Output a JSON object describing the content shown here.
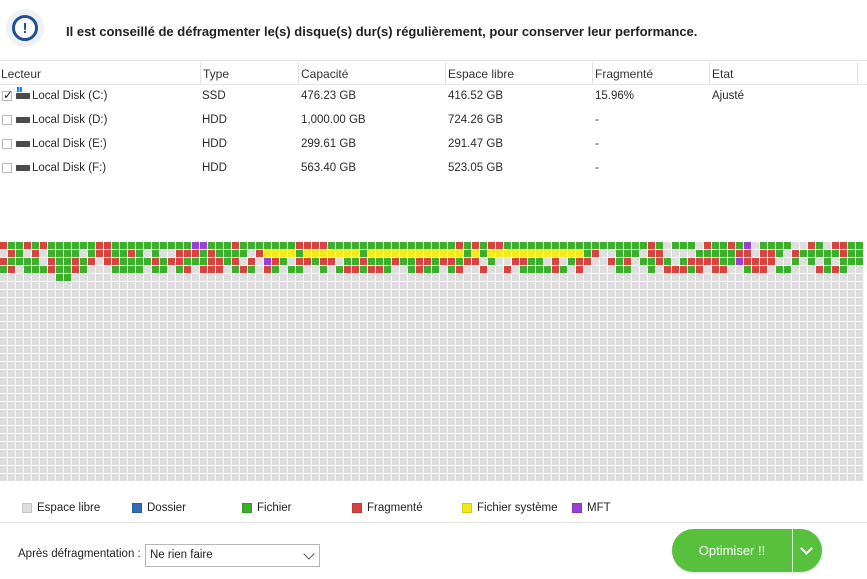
{
  "header": {
    "message": "Il est conseillé de défragmenter le(s) disque(s) dur(s) régulièrement, pour conserver leur performance.",
    "icon": "info-icon"
  },
  "table": {
    "columns": [
      "Lecteur",
      "Type",
      "Capacité",
      "Espace libre",
      "Fragmenté",
      "Etat"
    ],
    "rows": [
      {
        "checked": true,
        "icon": "system-disk-icon",
        "drive": "Local Disk (C:)",
        "type": "SSD",
        "capacity": "476.23 GB",
        "free": "416.52 GB",
        "fragmented": "15.96%",
        "state": "Ajusté"
      },
      {
        "checked": false,
        "icon": "disk-icon",
        "drive": "Local Disk (D:)",
        "type": "HDD",
        "capacity": "1,000.00 GB",
        "free": "724.26 GB",
        "fragmented": "-",
        "state": ""
      },
      {
        "checked": false,
        "icon": "disk-icon",
        "drive": "Local Disk (E:)",
        "type": "HDD",
        "capacity": "299.61 GB",
        "free": "291.47 GB",
        "fragmented": "-",
        "state": ""
      },
      {
        "checked": false,
        "icon": "disk-icon",
        "drive": "Local Disk (F:)",
        "type": "HDD",
        "capacity": "563.40 GB",
        "free": "523.05 GB",
        "fragmented": "-",
        "state": ""
      }
    ]
  },
  "legend": {
    "items": [
      {
        "label": "Espace libre",
        "color": "#dedede"
      },
      {
        "label": "Dossier",
        "color": "#2f6db5"
      },
      {
        "label": "Fichier",
        "color": "#3cb02c"
      },
      {
        "label": "Fragmenté",
        "color": "#d9433f"
      },
      {
        "label": "Fichier système",
        "color": "#f2ea1c"
      },
      {
        "label": "MFT",
        "color": "#9b3ed6"
      }
    ]
  },
  "colors": {
    "free": "#dedede",
    "folder": "#2f6db5",
    "file": "#3cb02c",
    "fragmented": "#d9433f",
    "system": "#f2ea1c",
    "mft": "#9b3ed6",
    "accent": "#57c03d"
  },
  "footer": {
    "after_label": "Après défragmentation :",
    "after_value": "Ne rien faire",
    "optimize_label": "Optimiser !!"
  }
}
